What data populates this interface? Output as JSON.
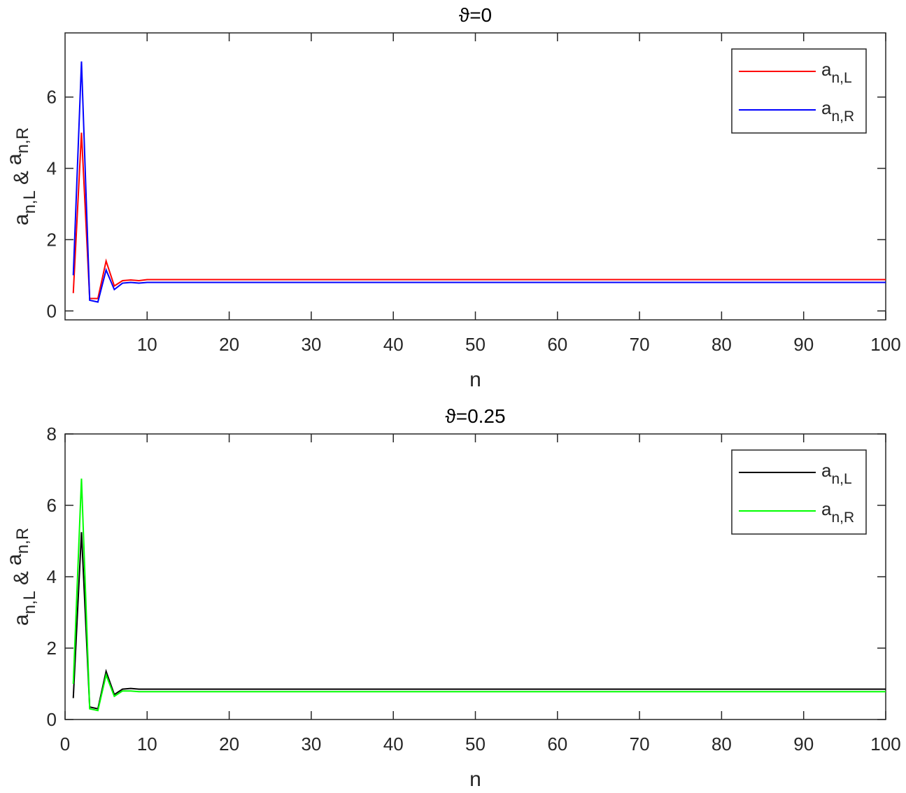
{
  "chart_data": [
    {
      "type": "line",
      "title": "ϑ=0",
      "xlabel": "n",
      "ylabel": [
        "a",
        "n,L",
        "&",
        "a",
        "n,R"
      ],
      "x": [
        1,
        2,
        3,
        4,
        5,
        6,
        7,
        8,
        9,
        10,
        11,
        12,
        13,
        14,
        15,
        16,
        17,
        18,
        19,
        20,
        21,
        22,
        23,
        24,
        25,
        26,
        27,
        28,
        29,
        30,
        31,
        32,
        33,
        34,
        35,
        36,
        37,
        38,
        39,
        40,
        41,
        42,
        43,
        44,
        45,
        46,
        47,
        48,
        49,
        50,
        51,
        52,
        53,
        54,
        55,
        56,
        57,
        58,
        59,
        60,
        61,
        62,
        63,
        64,
        65,
        66,
        67,
        68,
        69,
        70,
        71,
        72,
        73,
        74,
        75,
        76,
        77,
        78,
        79,
        80,
        81,
        82,
        83,
        84,
        85,
        86,
        87,
        88,
        89,
        90,
        91,
        92,
        93,
        94,
        95,
        96,
        97,
        98,
        99,
        100
      ],
      "series": [
        {
          "name": [
            "a",
            "n,L"
          ],
          "color": "#ff0000",
          "values": [
            0.5,
            5,
            0.35,
            0.35,
            1.4,
            0.7,
            0.85,
            0.87,
            0.85,
            0.88,
            0.88,
            0.88,
            0.88,
            0.88,
            0.88,
            0.88,
            0.88,
            0.88,
            0.88,
            0.88,
            0.88,
            0.88,
            0.88,
            0.88,
            0.88,
            0.88,
            0.88,
            0.88,
            0.88,
            0.88,
            0.88,
            0.88,
            0.88,
            0.88,
            0.88,
            0.88,
            0.88,
            0.88,
            0.88,
            0.88,
            0.88,
            0.88,
            0.88,
            0.88,
            0.88,
            0.88,
            0.88,
            0.88,
            0.88,
            0.88,
            0.88,
            0.88,
            0.88,
            0.88,
            0.88,
            0.88,
            0.88,
            0.88,
            0.88,
            0.88,
            0.88,
            0.88,
            0.88,
            0.88,
            0.88,
            0.88,
            0.88,
            0.88,
            0.88,
            0.88,
            0.88,
            0.88,
            0.88,
            0.88,
            0.88,
            0.88,
            0.88,
            0.88,
            0.88,
            0.88,
            0.88,
            0.88,
            0.88,
            0.88,
            0.88,
            0.88,
            0.88,
            0.88,
            0.88,
            0.88,
            0.88,
            0.88,
            0.88,
            0.88,
            0.88,
            0.88,
            0.88,
            0.88,
            0.88,
            0.88
          ]
        },
        {
          "name": [
            "a",
            "n,R"
          ],
          "color": "#0000ff",
          "values": [
            1.0,
            7.0,
            0.3,
            0.25,
            1.15,
            0.6,
            0.78,
            0.8,
            0.78,
            0.8,
            0.8,
            0.8,
            0.8,
            0.8,
            0.8,
            0.8,
            0.8,
            0.8,
            0.8,
            0.8,
            0.8,
            0.8,
            0.8,
            0.8,
            0.8,
            0.8,
            0.8,
            0.8,
            0.8,
            0.8,
            0.8,
            0.8,
            0.8,
            0.8,
            0.8,
            0.8,
            0.8,
            0.8,
            0.8,
            0.8,
            0.8,
            0.8,
            0.8,
            0.8,
            0.8,
            0.8,
            0.8,
            0.8,
            0.8,
            0.8,
            0.8,
            0.8,
            0.8,
            0.8,
            0.8,
            0.8,
            0.8,
            0.8,
            0.8,
            0.8,
            0.8,
            0.8,
            0.8,
            0.8,
            0.8,
            0.8,
            0.8,
            0.8,
            0.8,
            0.8,
            0.8,
            0.8,
            0.8,
            0.8,
            0.8,
            0.8,
            0.8,
            0.8,
            0.8,
            0.8,
            0.8,
            0.8,
            0.8,
            0.8,
            0.8,
            0.8,
            0.8,
            0.8,
            0.8,
            0.8,
            0.8,
            0.8,
            0.8,
            0.8,
            0.8,
            0.8,
            0.8,
            0.8,
            0.8,
            0.8
          ]
        }
      ],
      "xlim": [
        0,
        100
      ],
      "xticks": [
        10,
        20,
        30,
        40,
        50,
        60,
        70,
        80,
        90,
        100
      ],
      "ylim": [
        -0.25,
        7.8
      ],
      "yticks": [
        0,
        2,
        4,
        6
      ],
      "legend": "upper right"
    },
    {
      "type": "line",
      "title": "ϑ=0.25",
      "xlabel": "n",
      "ylabel": [
        "a",
        "n,L",
        "&",
        "a",
        "n,R"
      ],
      "x": [
        1,
        2,
        3,
        4,
        5,
        6,
        7,
        8,
        9,
        10,
        11,
        12,
        13,
        14,
        15,
        16,
        17,
        18,
        19,
        20,
        21,
        22,
        23,
        24,
        25,
        26,
        27,
        28,
        29,
        30,
        31,
        32,
        33,
        34,
        35,
        36,
        37,
        38,
        39,
        40,
        41,
        42,
        43,
        44,
        45,
        46,
        47,
        48,
        49,
        50,
        51,
        52,
        53,
        54,
        55,
        56,
        57,
        58,
        59,
        60,
        61,
        62,
        63,
        64,
        65,
        66,
        67,
        68,
        69,
        70,
        71,
        72,
        73,
        74,
        75,
        76,
        77,
        78,
        79,
        80,
        81,
        82,
        83,
        84,
        85,
        86,
        87,
        88,
        89,
        90,
        91,
        92,
        93,
        94,
        95,
        96,
        97,
        98,
        99,
        100
      ],
      "series": [
        {
          "name": [
            "a",
            "n,L"
          ],
          "color": "#000000",
          "values": [
            0.6,
            5.25,
            0.35,
            0.3,
            1.35,
            0.7,
            0.85,
            0.87,
            0.85,
            0.85,
            0.85,
            0.85,
            0.85,
            0.85,
            0.85,
            0.85,
            0.85,
            0.85,
            0.85,
            0.85,
            0.85,
            0.85,
            0.85,
            0.85,
            0.85,
            0.85,
            0.85,
            0.85,
            0.85,
            0.85,
            0.85,
            0.85,
            0.85,
            0.85,
            0.85,
            0.85,
            0.85,
            0.85,
            0.85,
            0.85,
            0.85,
            0.85,
            0.85,
            0.85,
            0.85,
            0.85,
            0.85,
            0.85,
            0.85,
            0.85,
            0.85,
            0.85,
            0.85,
            0.85,
            0.85,
            0.85,
            0.85,
            0.85,
            0.85,
            0.85,
            0.85,
            0.85,
            0.85,
            0.85,
            0.85,
            0.85,
            0.85,
            0.85,
            0.85,
            0.85,
            0.85,
            0.85,
            0.85,
            0.85,
            0.85,
            0.85,
            0.85,
            0.85,
            0.85,
            0.85,
            0.85,
            0.85,
            0.85,
            0.85,
            0.85,
            0.85,
            0.85,
            0.85,
            0.85,
            0.85,
            0.85,
            0.85,
            0.85,
            0.85,
            0.85,
            0.85,
            0.85,
            0.85,
            0.85,
            0.85
          ]
        },
        {
          "name": [
            "a",
            "n,R"
          ],
          "color": "#00ff00",
          "values": [
            1.0,
            6.75,
            0.3,
            0.25,
            1.25,
            0.65,
            0.8,
            0.8,
            0.78,
            0.78,
            0.78,
            0.78,
            0.78,
            0.78,
            0.78,
            0.78,
            0.78,
            0.78,
            0.78,
            0.78,
            0.78,
            0.78,
            0.78,
            0.78,
            0.78,
            0.78,
            0.78,
            0.78,
            0.78,
            0.78,
            0.78,
            0.78,
            0.78,
            0.78,
            0.78,
            0.78,
            0.78,
            0.78,
            0.78,
            0.78,
            0.78,
            0.78,
            0.78,
            0.78,
            0.78,
            0.78,
            0.78,
            0.78,
            0.78,
            0.78,
            0.78,
            0.78,
            0.78,
            0.78,
            0.78,
            0.78,
            0.78,
            0.78,
            0.78,
            0.78,
            0.78,
            0.78,
            0.78,
            0.78,
            0.78,
            0.78,
            0.78,
            0.78,
            0.78,
            0.78,
            0.78,
            0.78,
            0.78,
            0.78,
            0.78,
            0.78,
            0.78,
            0.78,
            0.78,
            0.78,
            0.78,
            0.78,
            0.78,
            0.78,
            0.78,
            0.78,
            0.78,
            0.78,
            0.78,
            0.78,
            0.78,
            0.78,
            0.78,
            0.78,
            0.78,
            0.78,
            0.78,
            0.78,
            0.78,
            0.78
          ]
        }
      ],
      "xlim": [
        0,
        100
      ],
      "xticks": [
        0,
        10,
        20,
        30,
        40,
        50,
        60,
        70,
        80,
        90,
        100
      ],
      "ylim": [
        0,
        8
      ],
      "yticks": [
        0,
        2,
        4,
        6,
        8
      ],
      "legend": "upper right"
    }
  ]
}
